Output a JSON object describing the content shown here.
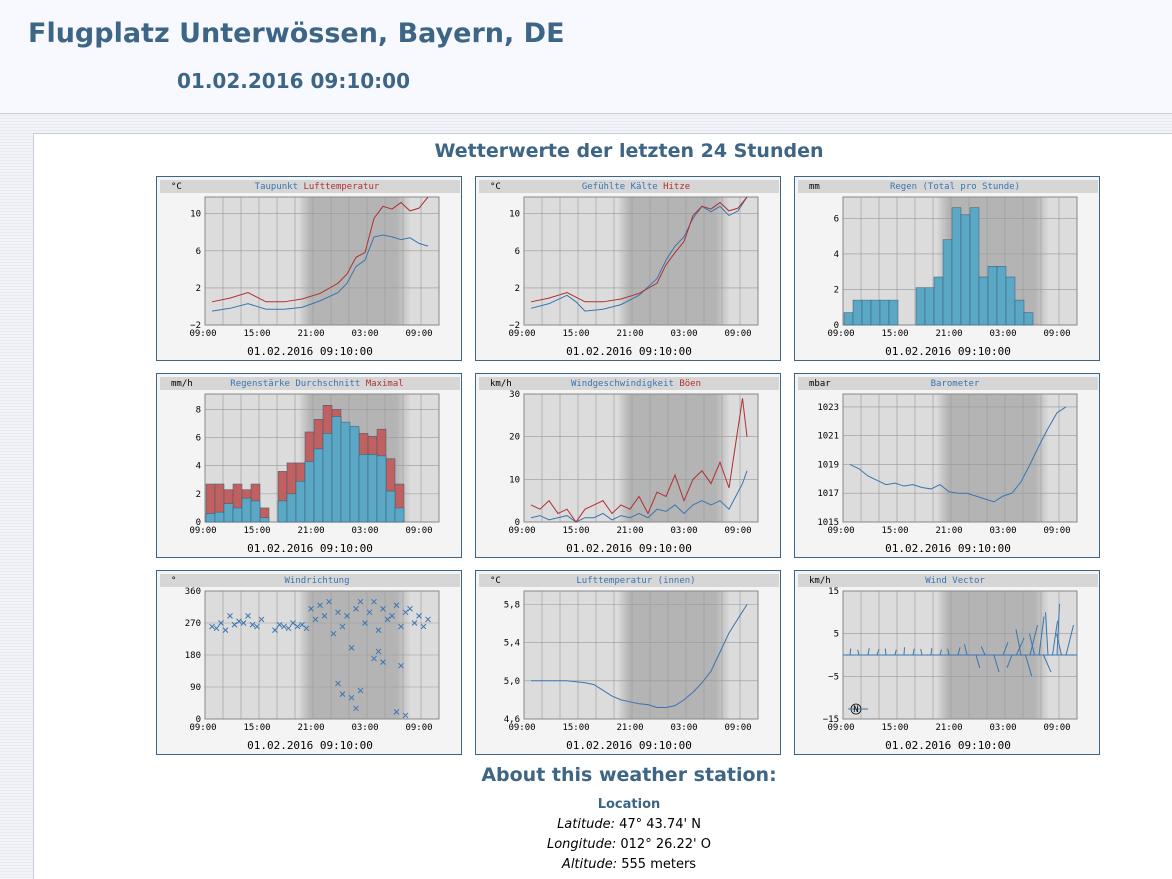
{
  "header": {
    "title": "Flugplatz Unterwössen, Bayern, DE",
    "datetime": "01.02.2016 09:10:00"
  },
  "section_title": "Wetterwerte der letzten 24 Stunden",
  "colors": {
    "blue": "#3a75b0",
    "red": "#b03030",
    "bar_blue": "#5aa7c6",
    "bar_red": "#c06060",
    "heading": "#3d6585"
  },
  "chart_data": [
    {
      "type": "line",
      "unit": "°C",
      "title_parts": [
        {
          "text": "Taupunkt",
          "color": "#3a75b0"
        },
        {
          "text": "Lufttemperatur",
          "color": "#b03030"
        }
      ],
      "x_ticks": [
        "09:00",
        "15:00",
        "21:00",
        "03:00",
        "09:00"
      ],
      "y_ticks": [
        "−2",
        "2",
        "6",
        "10"
      ],
      "ylim": [
        -2,
        12
      ],
      "footer": "01.02.2016 09:10:00",
      "x": [
        0,
        2,
        4,
        5,
        6,
        8,
        10,
        12,
        14,
        15,
        16,
        17,
        18,
        19,
        20,
        21,
        22,
        23,
        24
      ],
      "series": [
        {
          "name": "Taupunkt",
          "color": "#3a75b0",
          "values": [
            -0.5,
            -0.2,
            0.3,
            0,
            -0.3,
            -0.3,
            -0.1,
            0.6,
            1.5,
            2.5,
            4.3,
            5,
            7.5,
            7.7,
            7.5,
            7.2,
            7.4,
            6.8,
            6.5
          ]
        },
        {
          "name": "Lufttemperatur",
          "color": "#b03030",
          "values": [
            0.5,
            0.9,
            1.5,
            1,
            0.5,
            0.5,
            0.8,
            1.4,
            2.5,
            3.5,
            5.3,
            5.8,
            9.5,
            10.8,
            10.5,
            11.2,
            10.3,
            10.6,
            11.8
          ]
        }
      ]
    },
    {
      "type": "line",
      "unit": "°C",
      "title_parts": [
        {
          "text": "Gefühlte Kälte",
          "color": "#3a75b0"
        },
        {
          "text": "Hitze",
          "color": "#b03030"
        }
      ],
      "x_ticks": [
        "09:00",
        "15:00",
        "21:00",
        "03:00",
        "09:00"
      ],
      "y_ticks": [
        "−2",
        "2",
        "6",
        "10"
      ],
      "ylim": [
        -2,
        12
      ],
      "footer": "01.02.2016 09:10:00",
      "x": [
        0,
        2,
        4,
        5,
        6,
        8,
        10,
        12,
        14,
        15,
        16,
        17,
        18,
        19,
        20,
        21,
        22,
        23,
        24
      ],
      "series": [
        {
          "name": "Gefühlte Kälte",
          "color": "#3a75b0",
          "values": [
            -0.2,
            0.3,
            1.2,
            0.5,
            -0.5,
            -0.3,
            0.2,
            1.2,
            3,
            5,
            6.5,
            7.5,
            9.5,
            10.8,
            10.2,
            10.8,
            9.8,
            10.3,
            11.8
          ]
        },
        {
          "name": "Hitze",
          "color": "#b03030",
          "values": [
            0.5,
            0.9,
            1.5,
            1,
            0.5,
            0.5,
            0.8,
            1.4,
            2.5,
            4.5,
            5.8,
            7,
            9.8,
            10.8,
            10.5,
            11.2,
            10.3,
            10.6,
            11.8
          ]
        }
      ]
    },
    {
      "type": "bar",
      "unit": "mm",
      "title_parts": [
        {
          "text": "Regen (Total pro Stunde)",
          "color": "#3a75b0"
        }
      ],
      "x_ticks": [
        "09:00",
        "15:00",
        "21:00",
        "03:00",
        "09:00"
      ],
      "y_ticks": [
        "0",
        "2",
        "4",
        "6"
      ],
      "ylim": [
        0,
        7
      ],
      "footer": "01.02.2016 09:10:00",
      "series": [
        {
          "name": "Regen",
          "color": "#5aa7c6",
          "values": [
            0.7,
            1.4,
            1.4,
            1.4,
            1.4,
            1.4,
            0,
            0,
            2.1,
            2.1,
            2.7,
            4.8,
            6.6,
            6.2,
            6.6,
            2.7,
            3.3,
            3.3,
            2.7,
            1.4,
            0.7,
            0,
            0,
            0
          ]
        }
      ]
    },
    {
      "type": "bar",
      "unit": "mm/h",
      "title_parts": [
        {
          "text": "Regenstärke Durchschnitt",
          "color": "#3a75b0"
        },
        {
          "text": "Maximal",
          "color": "#b03030"
        }
      ],
      "x_ticks": [
        "09:00",
        "15:00",
        "21:00",
        "03:00",
        "09:00"
      ],
      "y_ticks": [
        "0",
        "2",
        "4",
        "6",
        "8"
      ],
      "ylim": [
        0,
        9
      ],
      "footer": "01.02.2016 09:10:00",
      "series": [
        {
          "name": "Durchschnitt",
          "color": "#5aa7c6",
          "values": [
            0.6,
            0.7,
            1.3,
            1,
            1.7,
            1.5,
            0.3,
            0,
            1.5,
            2,
            2.9,
            4.3,
            5.2,
            6.3,
            7.5,
            7.1,
            6.8,
            4.8,
            4.8,
            4.7,
            2.2,
            1,
            0,
            0
          ]
        },
        {
          "name": "Maximal",
          "color": "#c06060",
          "values": [
            2.7,
            2.7,
            2.3,
            2.7,
            2.3,
            2.7,
            1,
            0,
            3.6,
            4.2,
            4.2,
            6.4,
            7.3,
            8.3,
            8,
            6.6,
            6.6,
            6.3,
            6.1,
            6.6,
            4.5,
            2.7,
            0,
            0
          ]
        }
      ]
    },
    {
      "type": "line",
      "unit": "km/h",
      "title_parts": [
        {
          "text": "Windgeschwindigkeit",
          "color": "#3a75b0"
        },
        {
          "text": "Böen",
          "color": "#b03030"
        }
      ],
      "x_ticks": [
        "09:00",
        "15:00",
        "21:00",
        "03:00",
        "09:00"
      ],
      "y_ticks": [
        "0",
        "10",
        "20",
        "30"
      ],
      "ylim": [
        0,
        30
      ],
      "footer": "01.02.2016 09:10:00",
      "x": [
        0,
        1,
        2,
        3,
        4,
        5,
        6,
        7,
        8,
        9,
        10,
        11,
        12,
        13,
        14,
        15,
        16,
        17,
        18,
        19,
        20,
        21,
        22,
        23,
        23.5,
        24
      ],
      "series": [
        {
          "name": "Windgeschwindigkeit",
          "color": "#3a75b0",
          "values": [
            1,
            1.5,
            0.5,
            1,
            1.5,
            0,
            1,
            1,
            2,
            0.5,
            1.5,
            1,
            2,
            1,
            3,
            2.5,
            4,
            2,
            4,
            5,
            4,
            5,
            3,
            7,
            9,
            12
          ]
        },
        {
          "name": "Böen",
          "color": "#b03030",
          "values": [
            4,
            3,
            5,
            2,
            3,
            0,
            3,
            4,
            5,
            2,
            4,
            3,
            6,
            2,
            7,
            6,
            11,
            5,
            10,
            12,
            9,
            14,
            8,
            22,
            29,
            20
          ]
        }
      ]
    },
    {
      "type": "line",
      "unit": "mbar",
      "title_parts": [
        {
          "text": "Barometer",
          "color": "#3a75b0"
        }
      ],
      "x_ticks": [
        "09:00",
        "15:00",
        "21:00",
        "03:00",
        "09:00"
      ],
      "y_ticks": [
        "1015",
        "1017",
        "1019",
        "1021",
        "1023"
      ],
      "ylim": [
        1015,
        1024
      ],
      "footer": "01.02.2016 09:10:00",
      "x": [
        0,
        1,
        2,
        3,
        4,
        5,
        6,
        7,
        8,
        9,
        10,
        11,
        12,
        13,
        14,
        15,
        16,
        17,
        18,
        19,
        20,
        21,
        22,
        23,
        24
      ],
      "series": [
        {
          "name": "Barometer",
          "color": "#3a75b0",
          "values": [
            1019,
            1018.7,
            1018.2,
            1017.9,
            1017.6,
            1017.7,
            1017.5,
            1017.6,
            1017.4,
            1017.3,
            1017.6,
            1017.1,
            1017,
            1017,
            1016.8,
            1016.6,
            1016.4,
            1016.8,
            1017,
            1017.8,
            1019,
            1020.3,
            1021.5,
            1022.6,
            1023
          ]
        }
      ]
    },
    {
      "type": "scatter",
      "unit": "°",
      "title_parts": [
        {
          "text": "Windrichtung",
          "color": "#3a75b0"
        }
      ],
      "x_ticks": [
        "09:00",
        "15:00",
        "21:00",
        "03:00",
        "09:00"
      ],
      "y_ticks": [
        "0",
        "90",
        "180",
        "270",
        "360"
      ],
      "ylim": [
        0,
        360
      ],
      "footer": "01.02.2016 09:10:00",
      "series": [
        {
          "name": "Windrichtung",
          "color": "#3a75b0",
          "x": [
            0,
            0.5,
            1,
            1.5,
            2,
            2.5,
            3,
            3.5,
            4,
            4.5,
            5,
            5.5,
            7,
            7.5,
            8,
            8.5,
            9,
            9.5,
            10,
            10.5,
            11,
            11.5,
            12,
            12.5,
            13,
            13.5,
            14,
            14.5,
            15,
            15.5,
            16,
            16.5,
            17,
            17.5,
            18,
            18.5,
            19,
            19.5,
            20,
            20.5,
            21,
            21.5,
            22,
            22.5,
            23,
            23.5,
            24,
            14,
            14.5,
            15.5,
            16,
            16.5,
            18,
            18.5,
            19,
            20.5,
            21,
            21.5
          ],
          "values": [
            260,
            255,
            270,
            250,
            290,
            265,
            275,
            270,
            290,
            265,
            260,
            280,
            250,
            265,
            260,
            255,
            270,
            260,
            265,
            255,
            310,
            280,
            320,
            290,
            330,
            240,
            300,
            260,
            290,
            200,
            310,
            330,
            270,
            300,
            330,
            250,
            310,
            280,
            290,
            320,
            260,
            300,
            310,
            270,
            290,
            260,
            280,
            100,
            70,
            60,
            30,
            80,
            170,
            190,
            160,
            20,
            150,
            10
          ]
        }
      ]
    },
    {
      "type": "line",
      "unit": "°C",
      "title_parts": [
        {
          "text": "Lufttemperatur (innen)",
          "color": "#3a75b0"
        }
      ],
      "x_ticks": [
        "09:00",
        "15:00",
        "21:00",
        "03:00",
        "09:00"
      ],
      "y_ticks": [
        "4,6",
        "5,0",
        "5,4",
        "5,8"
      ],
      "ylim": [
        4.6,
        5.9
      ],
      "footer": "01.02.2016 09:10:00",
      "x": [
        0,
        2,
        4,
        6,
        7,
        8,
        9,
        10,
        11,
        12,
        13,
        14,
        15,
        16,
        17,
        18,
        19,
        20,
        21,
        22,
        23,
        24
      ],
      "series": [
        {
          "name": "Lufttemperatur (innen)",
          "color": "#3a75b0",
          "values": [
            5,
            5,
            5,
            4.98,
            4.96,
            4.9,
            4.84,
            4.8,
            4.78,
            4.76,
            4.75,
            4.72,
            4.72,
            4.74,
            4.8,
            4.88,
            4.98,
            5.1,
            5.3,
            5.5,
            5.65,
            5.8
          ]
        }
      ]
    },
    {
      "type": "vector",
      "unit": "km/h",
      "title_parts": [
        {
          "text": "Wind Vector",
          "color": "#3a75b0"
        }
      ],
      "x_ticks": [
        "09:00",
        "15:00",
        "21:00",
        "03:00",
        "09:00"
      ],
      "y_ticks": [
        "−15",
        "−5",
        "5",
        "15"
      ],
      "ylim": [
        -15,
        15
      ],
      "compass_label": "N",
      "footer": "01.02.2016 09:10:00",
      "series": [
        {
          "name": "Wind Vector",
          "color": "#3a75b0",
          "x": [
            0,
            1,
            2,
            3,
            4,
            5,
            6,
            7,
            8,
            9,
            10,
            11,
            12,
            13,
            14,
            15,
            16,
            17,
            18,
            18.5,
            19,
            19.5,
            20,
            20.5,
            21,
            21.5,
            22,
            22.5,
            23,
            23.5,
            24
          ],
          "u": [
            0.3,
            -0.5,
            0.5,
            0.8,
            -0.3,
            0.5,
            0.2,
            0.5,
            -0.5,
            0.3,
            0.6,
            -0.5,
            0.8,
            -1,
            1.5,
            -1.5,
            2,
            2,
            -2,
            3,
            -2,
            2.5,
            3,
            -2,
            2,
            3,
            -1,
            2,
            1,
            -2,
            3
          ],
          "v": [
            1.5,
            1.2,
            1.6,
            1.4,
            1.5,
            1.2,
            1.8,
            1.5,
            1.4,
            1.6,
            1.3,
            1.5,
            1.8,
            2.5,
            -3,
            2,
            -4,
            3,
            -3,
            4,
            6,
            -5,
            7,
            5,
            9,
            -4,
            10,
            8,
            12,
            5,
            7
          ]
        }
      ]
    }
  ],
  "about": {
    "title": "About this weather station:",
    "location_heading": "Location",
    "latitude_label": "Latitude:",
    "latitude_value": "47° 43.74' N",
    "longitude_label": "Longitude:",
    "longitude_value": "012° 26.22' O",
    "altitude_label": "Altitude:",
    "altitude_value": "555 meters"
  }
}
